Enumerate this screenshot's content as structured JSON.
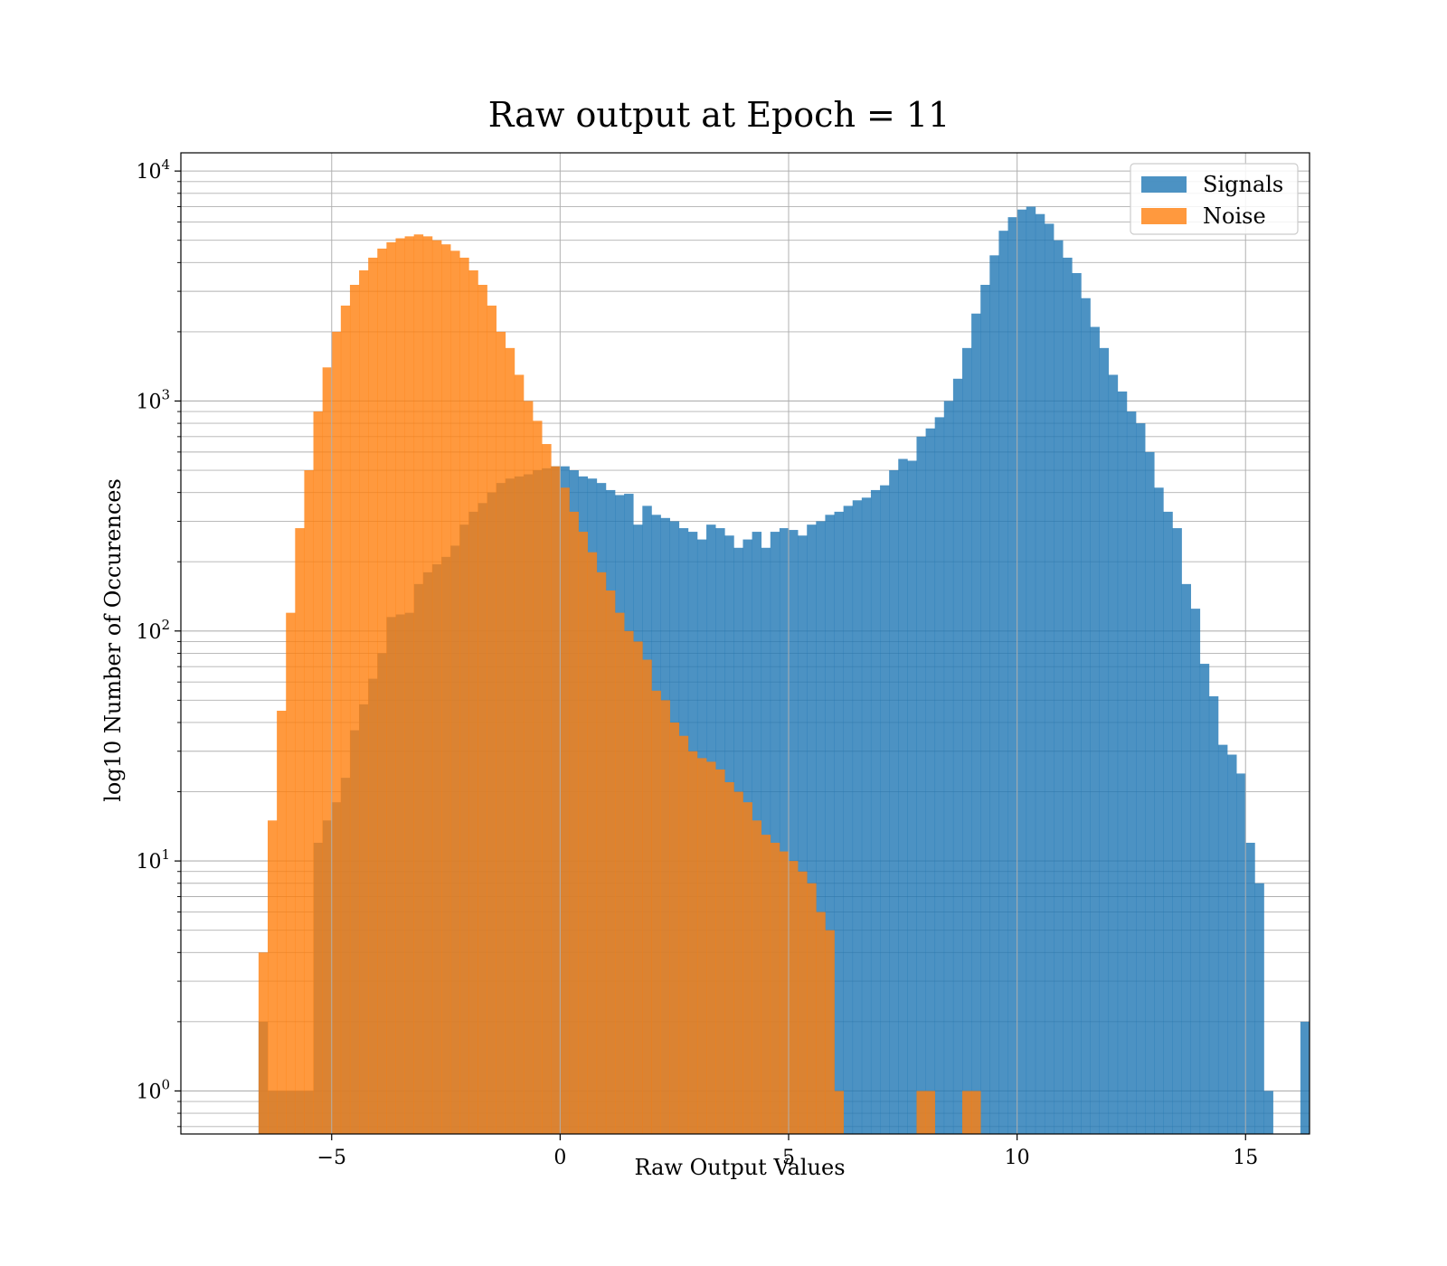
{
  "chart_data": {
    "type": "bar",
    "title": "Raw output at Epoch = 11",
    "xlabel": "Raw Output Values",
    "ylabel": "log10 Number of Occurences",
    "yscale": "log",
    "xlim": [
      -8.3,
      16.4
    ],
    "ylim": [
      0.65,
      12000
    ],
    "x_ticks": [
      -5,
      0,
      5,
      10,
      15
    ],
    "x_tick_labels": [
      "−5",
      "0",
      "5",
      "10",
      "15"
    ],
    "y_tick_labels": [
      {
        "base": "10",
        "exp": "0"
      },
      {
        "base": "10",
        "exp": "1"
      },
      {
        "base": "10",
        "exp": "2"
      },
      {
        "base": "10",
        "exp": "3"
      },
      {
        "base": "10",
        "exp": "4"
      }
    ],
    "grid": true,
    "legend_position": "top-right",
    "bin_start": -6.6,
    "bin_width": 0.2,
    "series": [
      {
        "name": "Signals",
        "color": "#1f77b4",
        "opacity": 0.8,
        "values": [
          2,
          1,
          1,
          1,
          1,
          1,
          12,
          15,
          18,
          23,
          37,
          48,
          62,
          80,
          115,
          118,
          120,
          160,
          180,
          195,
          210,
          235,
          290,
          330,
          360,
          400,
          440,
          460,
          470,
          480,
          500,
          510,
          520,
          520,
          500,
          470,
          460,
          440,
          410,
          390,
          395,
          290,
          350,
          320,
          310,
          300,
          280,
          270,
          250,
          290,
          280,
          260,
          230,
          250,
          270,
          230,
          270,
          280,
          275,
          260,
          290,
          300,
          320,
          330,
          350,
          370,
          380,
          410,
          430,
          500,
          560,
          550,
          700,
          760,
          850,
          1000,
          1250,
          1700,
          2400,
          3200,
          4300,
          5500,
          6300,
          6800,
          7000,
          6500,
          5900,
          5000,
          4200,
          3600,
          2800,
          2100,
          1700,
          1300,
          1100,
          900,
          800,
          600,
          420,
          330,
          280,
          160,
          125,
          72,
          52,
          32,
          29,
          24,
          12,
          8,
          1,
          0,
          0,
          0,
          2
        ]
      },
      {
        "name": "Noise",
        "color": "#ff7f0e",
        "opacity": 0.8,
        "values": [
          4,
          15,
          45,
          120,
          280,
          500,
          900,
          1400,
          2000,
          2600,
          3200,
          3700,
          4200,
          4600,
          4900,
          5100,
          5200,
          5300,
          5200,
          5000,
          4800,
          4500,
          4200,
          3700,
          3200,
          2600,
          2000,
          1700,
          1300,
          1000,
          820,
          650,
          520,
          420,
          330,
          270,
          220,
          180,
          150,
          120,
          100,
          90,
          75,
          55,
          50,
          40,
          35,
          30,
          28,
          27,
          25,
          22,
          20,
          18,
          15,
          13,
          12,
          11,
          10,
          9,
          8,
          6,
          5,
          1,
          0,
          0,
          0,
          0,
          0,
          0,
          0,
          0,
          1,
          1,
          0,
          0,
          0,
          1,
          1
        ]
      }
    ]
  }
}
